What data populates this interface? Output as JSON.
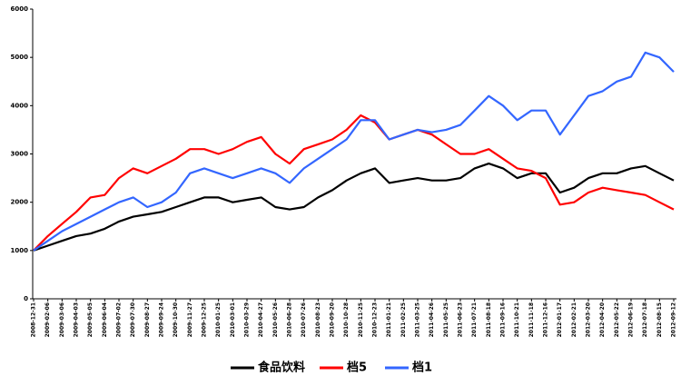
{
  "chart_data": {
    "type": "line",
    "categories": [
      "2008-12-31",
      "2009-02-06",
      "2009-03-06",
      "2009-04-03",
      "2009-05-05",
      "2009-06-04",
      "2009-07-02",
      "2009-07-30",
      "2009-08-27",
      "2009-09-24",
      "2009-10-30",
      "2009-11-27",
      "2009-12-25",
      "2010-01-25",
      "2010-03-01",
      "2010-03-29",
      "2010-04-27",
      "2010-05-26",
      "2010-06-28",
      "2010-07-26",
      "2010-08-23",
      "2010-09-20",
      "2010-10-28",
      "2010-11-25",
      "2010-12-23",
      "2011-01-21",
      "2011-02-25",
      "2011-03-25",
      "2011-04-26",
      "2011-05-25",
      "2011-06-23",
      "2011-07-21",
      "2011-08-18",
      "2011-09-16",
      "2011-10-21",
      "2011-11-18",
      "2011-12-16",
      "2012-01-17",
      "2012-02-21",
      "2012-03-20",
      "2012-04-20",
      "2012-05-22",
      "2012-06-19",
      "2012-07-18",
      "2012-08-15",
      "2012-09-12"
    ],
    "series": [
      {
        "name": "食品饮料",
        "color": "#000000",
        "values": [
          1000,
          1100,
          1200,
          1300,
          1350,
          1450,
          1600,
          1700,
          1750,
          1800,
          1900,
          2000,
          2100,
          2100,
          2000,
          2050,
          2100,
          1900,
          1850,
          1900,
          2100,
          2250,
          2450,
          2600,
          2700,
          2400,
          2450,
          2500,
          2450,
          2450,
          2500,
          2700,
          2800,
          2700,
          2500,
          2600,
          2600,
          2200,
          2300,
          2500,
          2600,
          2600,
          2700,
          2750,
          2600,
          2450
        ]
      },
      {
        "name": "档5",
        "color": "#ff0000",
        "values": [
          1000,
          1300,
          1550,
          1800,
          2100,
          2150,
          2500,
          2700,
          2600,
          2750,
          2900,
          3100,
          3100,
          3000,
          3100,
          3250,
          3350,
          3000,
          2800,
          3100,
          3200,
          3300,
          3500,
          3800,
          3650,
          3300,
          3400,
          3500,
          3400,
          3200,
          3000,
          3000,
          3100,
          2900,
          2700,
          2650,
          2500,
          1950,
          2000,
          2200,
          2300,
          2250,
          2200,
          2150,
          2000,
          1850
        ]
      },
      {
        "name": "档1",
        "color": "#3366ff",
        "values": [
          1000,
          1200,
          1400,
          1550,
          1700,
          1850,
          2000,
          2100,
          1900,
          2000,
          2200,
          2600,
          2700,
          2600,
          2500,
          2600,
          2700,
          2600,
          2400,
          2700,
          2900,
          3100,
          3300,
          3700,
          3700,
          3300,
          3400,
          3500,
          3450,
          3500,
          3600,
          3900,
          4200,
          4000,
          3700,
          3900,
          3900,
          3400,
          3800,
          4200,
          4300,
          4500,
          4600,
          5100,
          5000,
          4700
        ]
      }
    ],
    "ylim": [
      0,
      6000
    ],
    "yticks": [
      0,
      1000,
      2000,
      3000,
      4000,
      5000,
      6000
    ],
    "legend": "bottom"
  }
}
